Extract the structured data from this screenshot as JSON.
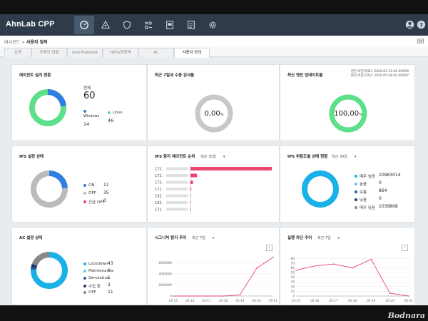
{
  "app": {
    "title": "AhnLab CPP"
  },
  "nav": {
    "icons": [
      "dashboard-icon",
      "network-icon",
      "shield-icon",
      "tools-icon",
      "document-icon",
      "report-icon",
      "settings-icon"
    ]
  },
  "breadcrumb": {
    "parent": "대시보드",
    "sep": ">",
    "current": "사용자 정의"
  },
  "tabs": [
    "요약",
    "도메인 현황",
    "Anti-Malware",
    "HIPS/방화벽",
    "AC",
    "사용자 정의"
  ],
  "agent_install": {
    "title": "에이전트 설치 현황",
    "total_label": "전체",
    "total": "60",
    "windows_label": "Windows",
    "windows": "14",
    "linux_label": "Linux",
    "linux": "46",
    "colors": {
      "windows": "#2f7fe0",
      "linux": "#5ee08a"
    }
  },
  "manual_scan": {
    "title": "최근 7일내 수동 검사율",
    "value": "0,00",
    "unit": "%"
  },
  "engine_update": {
    "title": "최신 엔진 업데이트율",
    "engine_label": "엔진 버전(대표)",
    "engine_ver": "2020.05.12.00.00096",
    "pattern_label": "엔진 버전(기타)",
    "pattern_ver": "2020.05.08.00.00097",
    "value": "100,00",
    "unit": "%"
  },
  "ips_status": {
    "title": "IPS 설정 상태",
    "items": [
      {
        "label": "ON",
        "value": "11",
        "color": "#2f7fe0"
      },
      {
        "label": "OFF",
        "value": "35",
        "color": "#bbbbbb"
      },
      {
        "label": "긴급 OFF",
        "value": "0",
        "color": "#e8476e"
      }
    ]
  },
  "ips_rank": {
    "title": "IPS 탐지 에이전트 순위",
    "period": "최근 30일",
    "rows": [
      {
        "label": "172.",
        "value": 100
      },
      {
        "label": "172.",
        "value": 8
      },
      {
        "label": "172.",
        "value": 3
      },
      {
        "label": "172.",
        "value": 1
      },
      {
        "label": "192.",
        "value": 0.5
      },
      {
        "label": "192.",
        "value": 0.3
      },
      {
        "label": "172.",
        "value": 0.3
      }
    ],
    "color": "#e8476e"
  },
  "ips_threat": {
    "title": "IPS 위험도별 상태 현황",
    "period": "최근 30일",
    "items": [
      {
        "label": "매우 높음",
        "value": "10963014",
        "color": "#1ab0e8"
      },
      {
        "label": "높음",
        "value": "0",
        "color": "#5fc8f0"
      },
      {
        "label": "보통",
        "value": "864",
        "color": "#2a5fa8"
      },
      {
        "label": "낮음",
        "value": "0",
        "color": "#1d3c6e"
      },
      {
        "label": "매우 낮음",
        "value": "1039808",
        "color": "#888888"
      }
    ]
  },
  "ac_status": {
    "title": "AC 설정 상태",
    "items": [
      {
        "label": "Lockdown",
        "value": "43",
        "color": "#1ab0e8"
      },
      {
        "label": "Maintenance",
        "value": "0",
        "color": "#5fc8f0"
      },
      {
        "label": "Simulation",
        "value": "1",
        "color": "#2a5fa8"
      },
      {
        "label": "수집 중",
        "value": "2",
        "color": "#1d3c6e"
      },
      {
        "label": "OFF",
        "value": "11",
        "color": "#888888"
      }
    ]
  },
  "signature_trend": {
    "title": "시그니처 탐지 추이",
    "period": "최근 7일",
    "next": "›"
  },
  "exec_block": {
    "title": "실행 차단 추이",
    "period": "최근 7일",
    "next": "›"
  },
  "chart_data": [
    {
      "type": "line",
      "x": [
        "05-15",
        "05-16",
        "05-17",
        "05-18",
        "05-19",
        "05-20",
        "05-21"
      ],
      "series": [
        {
          "values": [
            0,
            0,
            0,
            0,
            200000,
            5000000,
            7000000
          ]
        }
      ],
      "yticks": [
        "6000000",
        "4000000",
        "2000000",
        "0"
      ],
      "ylim": [
        0,
        7200000
      ],
      "color": "#e8476e",
      "grid": true
    },
    {
      "type": "line",
      "x": [
        "05-15",
        "05-16",
        "05-17",
        "05-18",
        "05-19",
        "05-20",
        "05-21"
      ],
      "series": [
        {
          "values": [
            55,
            64,
            68,
            60,
            78,
            6,
            0
          ]
        }
      ],
      "yticks": [
        "80",
        "70",
        "60",
        "50",
        "40",
        "30",
        "20",
        "10",
        "0"
      ],
      "ylim": [
        0,
        85
      ],
      "color": "#e8476e",
      "grid": true
    }
  ],
  "watermark": "Bodnara"
}
